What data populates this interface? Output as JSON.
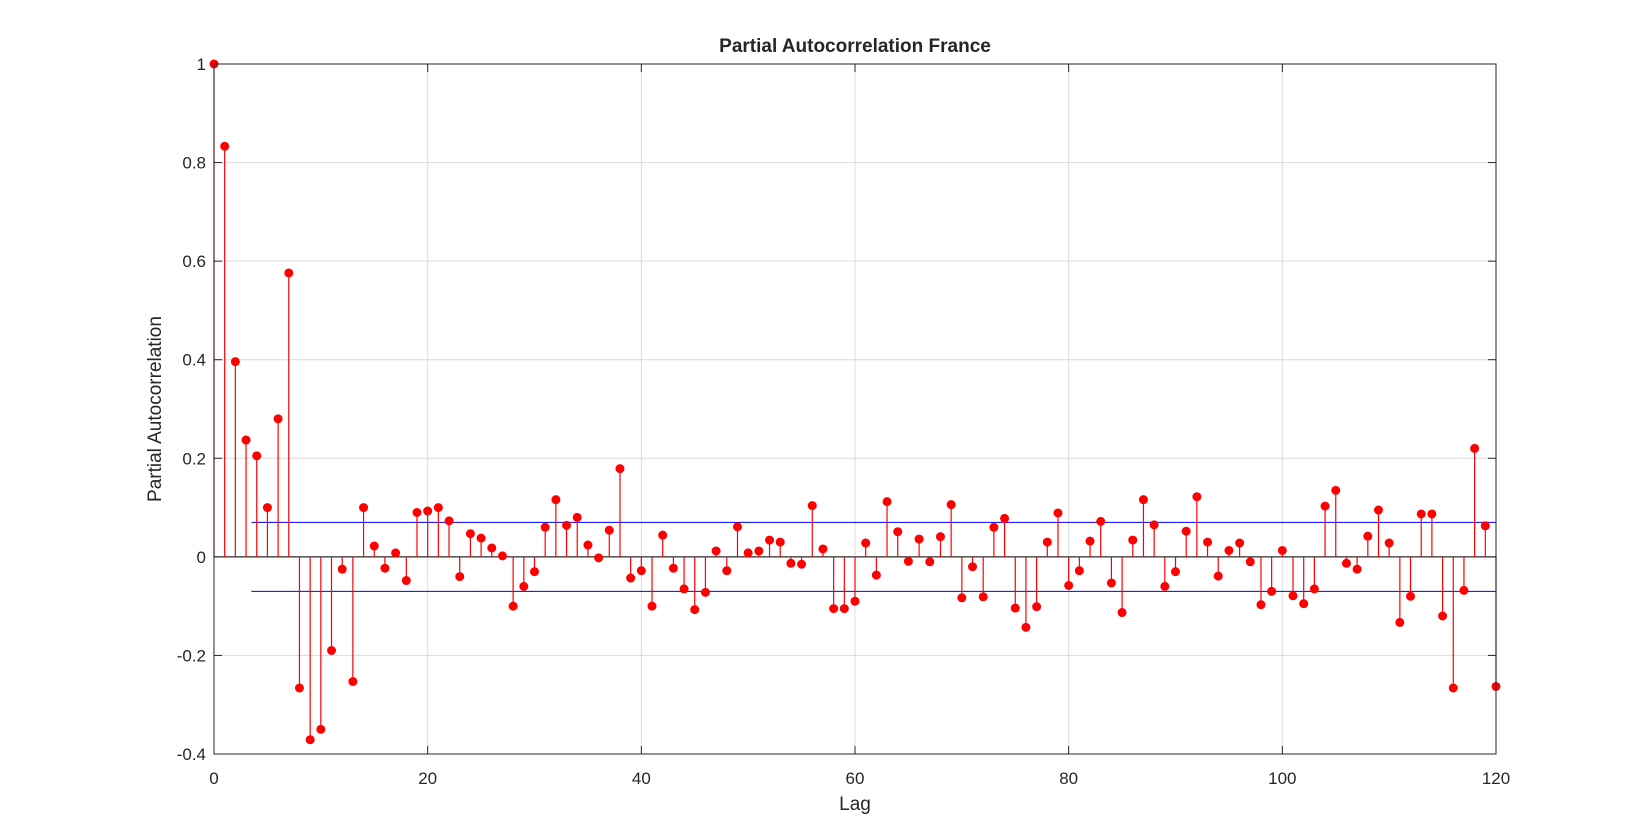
{
  "colors": {
    "stem": "#ff0000",
    "bounds": "#0000ff",
    "grid": "#dcdcdc",
    "axis": "#262626"
  },
  "chart_data": {
    "type": "stem",
    "title": "Partial Autocorrelation France",
    "xlabel": "Lag",
    "ylabel": "Partial Autocorrelation",
    "xlim": [
      0,
      120
    ],
    "ylim": [
      -0.4,
      1
    ],
    "grid": true,
    "xticks": [
      0,
      20,
      40,
      60,
      80,
      100,
      120
    ],
    "xtick_labels": [
      "0",
      "20",
      "40",
      "60",
      "80",
      "100",
      "120"
    ],
    "yticks": [
      -0.4,
      -0.2,
      0,
      0.2,
      0.4,
      0.6,
      0.8,
      1
    ],
    "ytick_labels": [
      "-0.4",
      "-0.2",
      "0",
      "0.2",
      "0.4",
      "0.6",
      "0.8",
      "1"
    ],
    "confidence_bounds": {
      "upper": 0.07,
      "lower": -0.07,
      "x_start": 3.5,
      "x_end": 120
    },
    "lags": [
      0,
      1,
      2,
      3,
      4,
      5,
      6,
      7,
      8,
      9,
      10,
      11,
      12,
      13,
      14,
      15,
      16,
      17,
      18,
      19,
      20,
      21,
      22,
      23,
      24,
      25,
      26,
      27,
      28,
      29,
      30,
      31,
      32,
      33,
      34,
      35,
      36,
      37,
      38,
      39,
      40,
      41,
      42,
      43,
      44,
      45,
      46,
      47,
      48,
      49,
      50,
      51,
      52,
      53,
      54,
      55,
      56,
      57,
      58,
      59,
      60,
      61,
      62,
      63,
      64,
      65,
      66,
      67,
      68,
      69,
      70,
      71,
      72,
      73,
      74,
      75,
      76,
      77,
      78,
      79,
      80,
      81,
      82,
      83,
      84,
      85,
      86,
      87,
      88,
      89,
      90,
      91,
      92,
      93,
      94,
      95,
      96,
      97,
      98,
      99,
      100,
      101,
      102,
      103,
      104,
      105,
      106,
      107,
      108,
      109,
      110,
      111,
      112,
      113,
      114,
      115,
      116,
      117,
      118,
      119,
      120
    ],
    "values": [
      1.0,
      0.833,
      0.396,
      0.237,
      0.205,
      0.1,
      0.28,
      0.576,
      -0.266,
      -0.371,
      -0.35,
      -0.19,
      -0.025,
      -0.253,
      0.1,
      0.022,
      -0.023,
      0.008,
      -0.048,
      0.09,
      0.093,
      0.1,
      0.073,
      -0.04,
      0.047,
      0.038,
      0.018,
      0.002,
      -0.1,
      -0.06,
      -0.03,
      0.06,
      0.116,
      0.064,
      0.08,
      0.024,
      -0.002,
      0.054,
      0.179,
      -0.043,
      -0.028,
      -0.1,
      0.044,
      -0.023,
      -0.065,
      -0.107,
      -0.072,
      0.012,
      -0.028,
      0.061,
      0.008,
      0.012,
      0.034,
      0.03,
      -0.013,
      -0.015,
      0.104,
      0.016,
      -0.105,
      -0.105,
      -0.09,
      0.028,
      -0.037,
      0.112,
      0.051,
      -0.009,
      0.036,
      -0.01,
      0.041,
      0.106,
      -0.083,
      -0.02,
      -0.081,
      0.06,
      0.078,
      -0.104,
      -0.143,
      -0.101,
      0.03,
      0.089,
      -0.058,
      -0.028,
      0.032,
      0.072,
      -0.053,
      -0.113,
      0.034,
      0.116,
      0.065,
      -0.06,
      -0.03,
      0.052,
      0.122,
      0.03,
      -0.039,
      0.013,
      0.028,
      -0.01,
      -0.097,
      -0.07,
      0.013,
      -0.079,
      -0.095,
      -0.065,
      0.103,
      0.135,
      -0.013,
      -0.025,
      0.042,
      0.095,
      0.028,
      -0.133,
      -0.08,
      0.087,
      0.087,
      -0.12,
      -0.266,
      -0.068,
      0.22,
      0.063,
      -0.263
    ]
  }
}
